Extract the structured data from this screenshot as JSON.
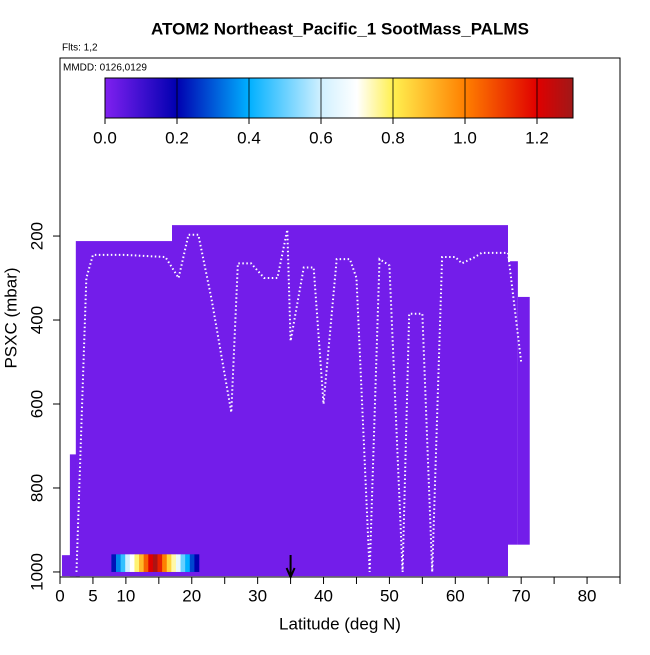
{
  "chart_data": {
    "type": "curtain",
    "title": "ATOM2 Northeast_Pacific_1 SootMass_PALMS",
    "flights_label": "Flts: 1,2",
    "dates_label": "MMDD: 0126,0129",
    "x_label": "Latitude (deg N)",
    "y_label": "PSXC (mbar)",
    "xlim": [
      0,
      85
    ],
    "ylim": [
      1012,
      -224
    ],
    "xticks": [
      0,
      5,
      10,
      20,
      30,
      40,
      50,
      60,
      70,
      80
    ],
    "x_minor_ticks": [
      15,
      25,
      35,
      45,
      55,
      65,
      75,
      85
    ],
    "yticks": [
      200,
      400,
      600,
      800,
      1000
    ],
    "colorbar": {
      "lim": [
        0,
        1.3
      ],
      "ticks": [
        {
          "value": 0,
          "label": "0.0"
        },
        {
          "value": 0.2,
          "label": "0.2"
        },
        {
          "value": 0.4,
          "label": "0.4"
        },
        {
          "value": 0.6,
          "label": "0.6"
        },
        {
          "value": 0.8,
          "label": "0.8"
        },
        {
          "value": 1.0,
          "label": "1.0"
        },
        {
          "value": 1.2,
          "label": "1.2"
        }
      ],
      "stops": [
        {
          "value": 0,
          "color": "#8020f0"
        },
        {
          "value": 0.2,
          "color": "#0000b0"
        },
        {
          "value": 0.4,
          "color": "#00b0ff"
        },
        {
          "value": 0.6,
          "color": "#d0f0ff"
        },
        {
          "value": 0.7,
          "color": "#ffffff"
        },
        {
          "value": 0.8,
          "color": "#fff050"
        },
        {
          "value": 1.0,
          "color": "#ff8000"
        },
        {
          "value": 1.2,
          "color": "#e00000"
        },
        {
          "value": 1.3,
          "color": "#a01818"
        }
      ]
    },
    "blocks": [
      {
        "lat": [
          0.3,
          3
        ],
        "p": [
          960,
          1010
        ],
        "value": 0.02
      },
      {
        "lat": [
          1.5,
          3
        ],
        "p": [
          720,
          1010
        ],
        "value": 0.02
      },
      {
        "lat": [
          2.4,
          17
        ],
        "p": [
          212,
          1010
        ],
        "value": 0.02
      },
      {
        "lat": [
          17,
          68
        ],
        "p": [
          174,
          1010
        ],
        "value": 0.02
      },
      {
        "lat": [
          68,
          69.5
        ],
        "p": [
          260,
          935
        ],
        "value": 0.02
      },
      {
        "lat": [
          69.5,
          71.3
        ],
        "p": [
          345,
          935
        ],
        "value": 0.02
      }
    ],
    "strip": {
      "p": [
        958,
        1000
      ],
      "lat": [
        7.8,
        8.5,
        9.2,
        9.9,
        10.6,
        11.3,
        12,
        12.7,
        13.4,
        14.1,
        14.8,
        15.5,
        16.2,
        16.9,
        17.6,
        18.3,
        19,
        19.7,
        20.4,
        21.1
      ],
      "values": [
        0.22,
        0.35,
        0.45,
        0.6,
        0.7,
        0.78,
        0.9,
        1.05,
        1.2,
        1.28,
        1.15,
        1.0,
        0.85,
        0.75,
        0.65,
        0.5,
        0.4,
        0.28,
        0.2
      ]
    },
    "track": {
      "lat": [
        2.5,
        4,
        5,
        10,
        16,
        18,
        19.5,
        21,
        23,
        26,
        27,
        29,
        31,
        33,
        34.5,
        35,
        37,
        38.5,
        40,
        42,
        44,
        45,
        47,
        48.5,
        50,
        52,
        53,
        55,
        56.5,
        58,
        60,
        61,
        63,
        64,
        65,
        66,
        68,
        70
      ],
      "p": [
        1000,
        300,
        245,
        245,
        250,
        300,
        197,
        197,
        350,
        620,
        265,
        265,
        300,
        300,
        185,
        450,
        275,
        275,
        600,
        255,
        255,
        300,
        1000,
        255,
        270,
        1000,
        385,
        385,
        1000,
        250,
        250,
        265,
        250,
        240,
        240,
        240,
        240,
        500
      ]
    },
    "arrow_lat": 35
  }
}
